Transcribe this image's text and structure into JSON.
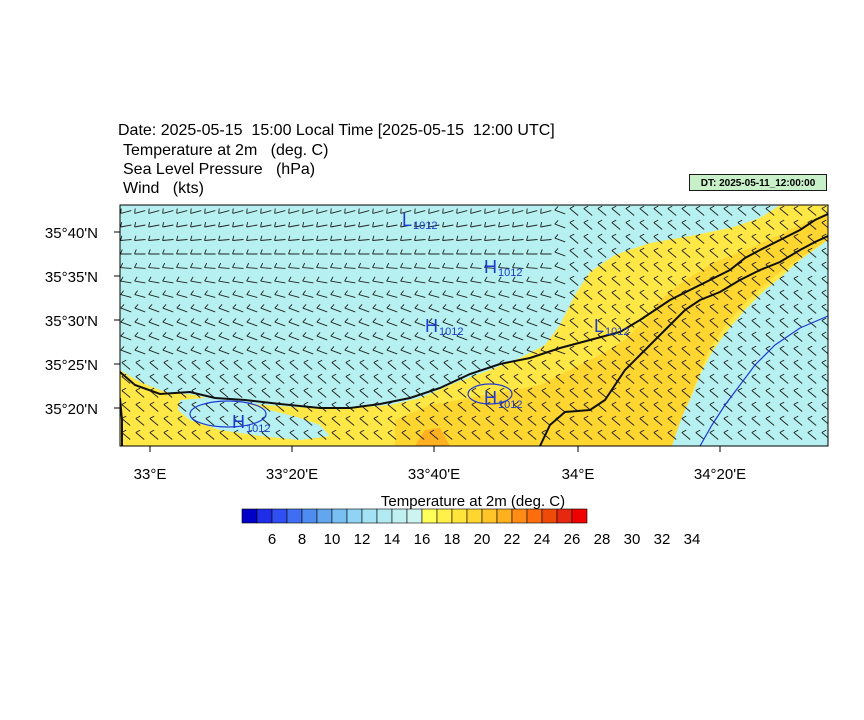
{
  "header": {
    "date_line": "Date: 2025-05-15  15:00 Local Time [2025-05-15  12:00 UTC]",
    "field1": "Temperature at 2m   (deg. C)",
    "field2": "Sea Level Pressure   (hPa)",
    "field3": "Wind   (kts)"
  },
  "dt_badge": "DT: 2025-05-11_12:00:00",
  "axes": {
    "y_ticks": [
      "35°40'N",
      "35°35'N",
      "35°30'N",
      "35°25'N",
      "35°20'N"
    ],
    "x_ticks": [
      "33°E",
      "33°20'E",
      "33°40'E",
      "34°E",
      "34°20'E"
    ]
  },
  "pressure_labels": [
    {
      "letter": "L",
      "value": "1012"
    },
    {
      "letter": "H",
      "value": "1012"
    },
    {
      "letter": "H",
      "value": "1012"
    },
    {
      "letter": "L",
      "value": "1012"
    },
    {
      "letter": "H",
      "value": "1012"
    },
    {
      "letter": "H",
      "value": "1012"
    }
  ],
  "legend": {
    "title": "Temperature at 2m  (deg. C)",
    "labels": [
      "6",
      "8",
      "10",
      "12",
      "14",
      "16",
      "18",
      "20",
      "22",
      "24",
      "26",
      "28",
      "30",
      "32",
      "34"
    ],
    "colors": [
      "#0000c8",
      "#1e2de6",
      "#2f4ff0",
      "#3f6ef2",
      "#4f8cf0",
      "#62a6f0",
      "#78bff2",
      "#8fd4f4",
      "#a3e2f4",
      "#b2eaf2",
      "#c0f0f0",
      "#cef4f2",
      "#ffff5a",
      "#fff04a",
      "#ffe43c",
      "#ffd530",
      "#ffc428",
      "#ffb020",
      "#ff8c14",
      "#ff6e0e",
      "#f04a08",
      "#e62810",
      "#f00000"
    ],
    "sea_color": "#b6f0f0",
    "land_color": "#ffe845"
  }
}
